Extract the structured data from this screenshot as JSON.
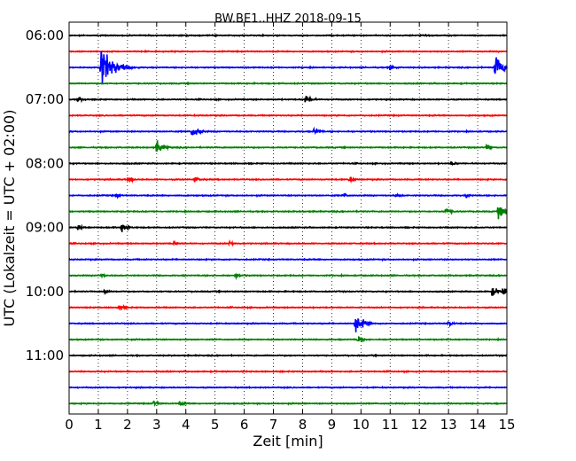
{
  "chart_data": {
    "type": "line",
    "title": "BW.BE1..HHZ 2018-09-15",
    "xlabel": "Zeit  [min]",
    "ylabel": "UTC (Lokalzeit = UTC + 02:00)",
    "xlim": [
      0,
      15
    ],
    "x_ticks": [
      "0",
      "1",
      "2",
      "3",
      "4",
      "5",
      "6",
      "7",
      "8",
      "9",
      "10",
      "11",
      "12",
      "13",
      "14",
      "15"
    ],
    "y_tick_labels": [
      "06:00",
      "07:00",
      "08:00",
      "09:00",
      "10:00",
      "11:00"
    ],
    "row_start": "06:00",
    "row_interval_min": 15,
    "grid": "vertical dotted",
    "color_cycle": [
      "#000000",
      "#ff0000",
      "#0000ff",
      "#008000"
    ],
    "events": [
      {
        "row": 2,
        "t": 1.1,
        "amp": 1.0
      },
      {
        "row": 2,
        "t": 14.6,
        "amp": 0.6
      },
      {
        "row": 2,
        "t": 11.0,
        "amp": 0.15
      },
      {
        "row": 4,
        "t": 0.3,
        "amp": 0.15
      },
      {
        "row": 4,
        "t": 8.1,
        "amp": 0.25
      },
      {
        "row": 6,
        "t": 4.2,
        "amp": 0.35
      },
      {
        "row": 6,
        "t": 8.4,
        "amp": 0.2
      },
      {
        "row": 7,
        "t": 3.0,
        "amp": 0.35
      },
      {
        "row": 7,
        "t": 14.3,
        "amp": 0.15
      },
      {
        "row": 8,
        "t": 13.1,
        "amp": 0.12
      },
      {
        "row": 9,
        "t": 2.0,
        "amp": 0.15
      },
      {
        "row": 9,
        "t": 4.3,
        "amp": 0.15
      },
      {
        "row": 9,
        "t": 9.6,
        "amp": 0.15
      },
      {
        "row": 10,
        "t": 1.6,
        "amp": 0.12
      },
      {
        "row": 10,
        "t": 9.4,
        "amp": 0.12
      },
      {
        "row": 10,
        "t": 11.2,
        "amp": 0.12
      },
      {
        "row": 10,
        "t": 13.6,
        "amp": 0.12
      },
      {
        "row": 11,
        "t": 12.9,
        "amp": 0.2
      },
      {
        "row": 11,
        "t": 14.7,
        "amp": 0.35
      },
      {
        "row": 12,
        "t": 0.3,
        "amp": 0.15
      },
      {
        "row": 12,
        "t": 1.8,
        "amp": 0.25
      },
      {
        "row": 13,
        "t": 3.6,
        "amp": 0.12
      },
      {
        "row": 13,
        "t": 5.5,
        "amp": 0.12
      },
      {
        "row": 15,
        "t": 1.1,
        "amp": 0.12
      },
      {
        "row": 15,
        "t": 5.7,
        "amp": 0.12
      },
      {
        "row": 16,
        "t": 1.2,
        "amp": 0.12
      },
      {
        "row": 16,
        "t": 14.5,
        "amp": 0.25
      },
      {
        "row": 16,
        "t": 14.85,
        "amp": 0.25
      },
      {
        "row": 17,
        "t": 1.7,
        "amp": 0.15
      },
      {
        "row": 18,
        "t": 9.8,
        "amp": 0.5
      },
      {
        "row": 18,
        "t": 13.0,
        "amp": 0.15
      },
      {
        "row": 19,
        "t": 9.9,
        "amp": 0.2
      },
      {
        "row": 23,
        "t": 2.9,
        "amp": 0.15
      },
      {
        "row": 23,
        "t": 3.8,
        "amp": 0.15
      }
    ]
  }
}
